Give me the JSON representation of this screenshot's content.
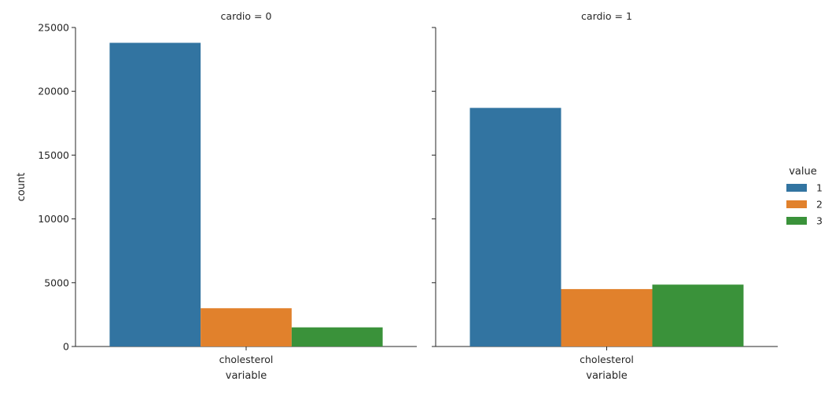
{
  "chart_data": {
    "type": "bar",
    "ylabel": "count",
    "ylim": [
      0,
      25000
    ],
    "yticks": [
      0,
      5000,
      10000,
      15000,
      20000,
      25000
    ],
    "legend": {
      "title": "value",
      "placement": "right",
      "entries": [
        "1",
        "2",
        "3"
      ],
      "colors": [
        "#3274a1",
        "#e1812c",
        "#3a923a"
      ]
    },
    "panels": [
      {
        "title": "cardio = 0",
        "xlabel": "variable",
        "categories": [
          "cholesterol"
        ],
        "series": [
          {
            "name": "1",
            "values": [
              23800
            ]
          },
          {
            "name": "2",
            "values": [
              3000
            ]
          },
          {
            "name": "3",
            "values": [
              1500
            ]
          }
        ]
      },
      {
        "title": "cardio = 1",
        "xlabel": "variable",
        "categories": [
          "cholesterol"
        ],
        "series": [
          {
            "name": "1",
            "values": [
              18700
            ]
          },
          {
            "name": "2",
            "values": [
              4500
            ]
          },
          {
            "name": "3",
            "values": [
              4850
            ]
          }
        ]
      }
    ]
  }
}
